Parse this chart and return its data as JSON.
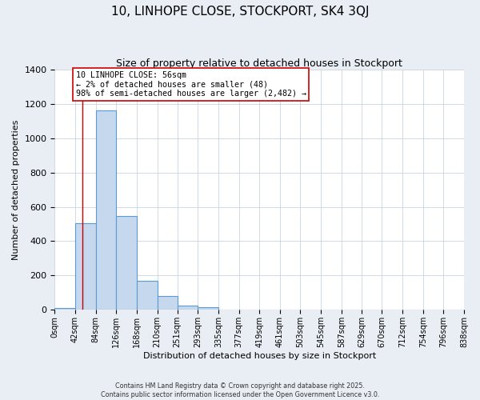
{
  "title": "10, LINHOPE CLOSE, STOCKPORT, SK4 3QJ",
  "subtitle": "Size of property relative to detached houses in Stockport",
  "xlabel": "Distribution of detached houses by size in Stockport",
  "ylabel": "Number of detached properties",
  "bar_edges": [
    0,
    42,
    84,
    126,
    168,
    210,
    251,
    293,
    335,
    377,
    419,
    461,
    503,
    545,
    587,
    629,
    670,
    712,
    754,
    796,
    838
  ],
  "bar_heights": [
    10,
    505,
    1160,
    545,
    170,
    83,
    27,
    18,
    0,
    0,
    0,
    0,
    0,
    0,
    0,
    0,
    0,
    0,
    0,
    0
  ],
  "bar_color": "#c5d8ed",
  "bar_edge_color": "#5b9bd5",
  "background_color": "#e8eef4",
  "plot_bg_color": "#ffffff",
  "grid_color": "#c8d4e0",
  "property_size": 56,
  "vline_color": "#cc0000",
  "annotation_line1": "10 LINHOPE CLOSE: 56sqm",
  "annotation_line2": "← 2% of detached houses are smaller (48)",
  "annotation_line3": "98% of semi-detached houses are larger (2,482) →",
  "annotation_box_edge_color": "#cc0000",
  "ylim": [
    0,
    1400
  ],
  "yticks": [
    0,
    200,
    400,
    600,
    800,
    1000,
    1200,
    1400
  ],
  "tick_labels": [
    "0sqm",
    "42sqm",
    "84sqm",
    "126sqm",
    "168sqm",
    "210sqm",
    "251sqm",
    "293sqm",
    "335sqm",
    "377sqm",
    "419sqm",
    "461sqm",
    "503sqm",
    "545sqm",
    "587sqm",
    "629sqm",
    "670sqm",
    "712sqm",
    "754sqm",
    "796sqm",
    "838sqm"
  ],
  "footer1": "Contains HM Land Registry data © Crown copyright and database right 2025.",
  "footer2": "Contains public sector information licensed under the Open Government Licence v3.0."
}
